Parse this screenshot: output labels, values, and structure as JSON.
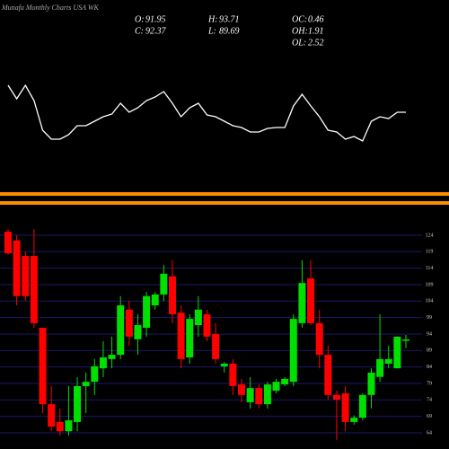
{
  "chart_data": [
    {
      "type": "line",
      "title": "Munafa Monthly Charts USA WK",
      "color": "#ffffff",
      "ylim": [
        0,
        200
      ],
      "values": [
        105,
        90,
        105,
        88,
        55,
        45,
        45,
        50,
        60,
        60,
        65,
        70,
        73,
        85,
        75,
        80,
        88,
        92,
        98,
        85,
        70,
        80,
        85,
        72,
        70,
        65,
        60,
        58,
        53,
        53,
        57,
        58,
        58,
        82,
        95,
        82,
        70,
        55,
        53,
        45,
        48,
        43,
        65,
        70,
        68,
        75,
        75
      ],
      "info": [
        {
          "label": "O:",
          "value": 91.95
        },
        {
          "label": "H:",
          "value": 93.71
        },
        {
          "label": "OC:",
          "value": 0.46
        },
        {
          "label": "C:",
          "value": 92.37
        },
        {
          "label": "L:",
          "value": 89.69
        },
        {
          "label": "OH:",
          "value": 1.91
        },
        {
          "label": "OL:",
          "value": 2.52
        }
      ]
    },
    {
      "type": "candlestick",
      "up_color": "#00e000",
      "down_color": "#ff0000",
      "grid": true,
      "ylim": [
        59.1,
        132.7
      ],
      "yticks": [
        124,
        119,
        114,
        109,
        104,
        99,
        94,
        89,
        84,
        79,
        74,
        69,
        64
      ],
      "open": [
        125.1,
        122.4,
        117.7,
        117.7,
        95.9,
        72.7,
        67.3,
        64.5,
        67.3,
        78.2,
        79.5,
        83.6,
        86.4,
        87.7,
        101.4,
        92.4,
        95.9,
        102.7,
        106,
        111.5,
        100.5,
        86.9,
        96.7,
        100,
        94,
        84.2,
        85,
        78.7,
        73.3,
        77.6,
        72.7,
        76.8,
        78.7,
        79.5,
        97.3,
        110.9,
        97.3,
        87.7,
        75.5,
        76,
        67.3,
        68.6,
        75.5,
        81,
        85,
        83.6,
        91.95
      ],
      "high": [
        125.9,
        124,
        119.1,
        125.9,
        95.9,
        78.2,
        71.4,
        78.2,
        80.9,
        82.3,
        86.4,
        91.8,
        93.2,
        105.5,
        104.1,
        100,
        106.8,
        106.8,
        115,
        116.4,
        102.7,
        100,
        105.5,
        101.4,
        97.3,
        85.5,
        86.4,
        80.4,
        80.9,
        78.7,
        79.5,
        80.4,
        80.9,
        100,
        116.4,
        116.4,
        101.4,
        90.5,
        76.8,
        78.2,
        69.3,
        76,
        83.6,
        100,
        90.5,
        93.2,
        93.71
      ],
      "low": [
        118,
        102.7,
        104.1,
        95.9,
        70,
        64.5,
        63.2,
        63.2,
        64.5,
        70,
        75.5,
        80.9,
        83.6,
        86.4,
        90.5,
        87.7,
        93.2,
        101.4,
        104.1,
        97.3,
        83.6,
        85,
        93.2,
        91.8,
        85,
        82.3,
        75.5,
        73.3,
        71.4,
        71.4,
        71.4,
        76,
        78.2,
        78.2,
        95.9,
        96.7,
        83.6,
        74.1,
        61.8,
        64.5,
        66.5,
        67.8,
        71.4,
        79.5,
        83.6,
        83.6,
        89.69
      ],
      "close": [
        118.5,
        105.5,
        105.5,
        97.3,
        72.7,
        65.9,
        64.5,
        67.8,
        78.2,
        79.5,
        84.2,
        86.9,
        87.7,
        102.7,
        93.2,
        96.7,
        105.5,
        106,
        112.3,
        100,
        86.4,
        98.6,
        101.4,
        93.2,
        86.4,
        85,
        78.2,
        75.5,
        77.6,
        72.7,
        78.7,
        79.5,
        80.4,
        98.6,
        109.5,
        97.3,
        87.7,
        75.5,
        74.1,
        67.3,
        68.6,
        75.5,
        82.3,
        86.4,
        86.4,
        93.2,
        92.37
      ]
    }
  ]
}
